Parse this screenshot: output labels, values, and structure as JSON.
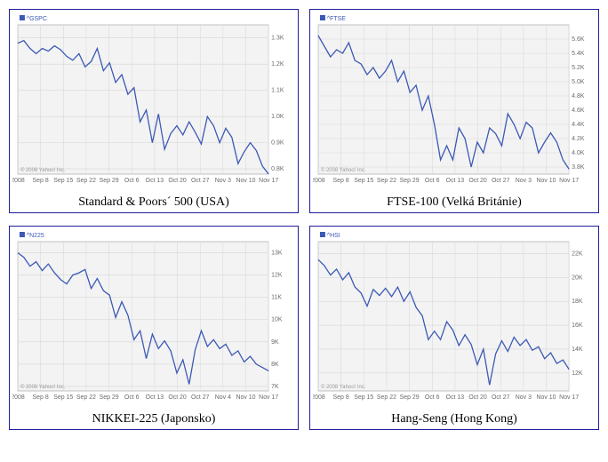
{
  "charts": [
    {
      "caption": "Standard & Poors´ 500  (USA)",
      "series_label": "^GSPC",
      "credit": "© 2008 Yahoo! Inc.",
      "line_color": "#3b59b5",
      "bg_color": "#f3f3f3",
      "grid_color": "#d6d6d6",
      "border_color": "#9a9a9a",
      "ylim": [
        780,
        1350
      ],
      "yticks": [
        {
          "v": 800,
          "l": "0.8K"
        },
        {
          "v": 900,
          "l": "0.9K"
        },
        {
          "v": 1000,
          "l": "1.0K"
        },
        {
          "v": 1100,
          "l": "1.1K"
        },
        {
          "v": 1200,
          "l": "1.2K"
        },
        {
          "v": 1300,
          "l": "1.3K"
        }
      ],
      "xtick_labels": [
        "2008",
        "Sep 8",
        "Sep 15",
        "Sep 22",
        "Sep 29",
        "Oct 6",
        "Oct 13",
        "Oct 20",
        "Oct 27",
        "Nov 3",
        "Nov 10",
        "Nov 17"
      ],
      "values": [
        1280,
        1290,
        1260,
        1240,
        1260,
        1250,
        1270,
        1255,
        1230,
        1215,
        1240,
        1190,
        1210,
        1260,
        1175,
        1205,
        1130,
        1160,
        1085,
        1110,
        980,
        1025,
        900,
        1010,
        875,
        935,
        965,
        930,
        980,
        940,
        895,
        1000,
        965,
        900,
        955,
        920,
        820,
        865,
        900,
        870,
        810,
        780
      ]
    },
    {
      "caption": "FTSE-100  (Velká Británie)",
      "series_label": "^FTSE",
      "credit": "© 2008 Yahoo! Inc.",
      "line_color": "#3b59b5",
      "bg_color": "#f3f3f3",
      "grid_color": "#d6d6d6",
      "border_color": "#9a9a9a",
      "ylim": [
        3700,
        5800
      ],
      "yticks": [
        {
          "v": 3800,
          "l": "3.8K"
        },
        {
          "v": 4000,
          "l": "4.0K"
        },
        {
          "v": 4200,
          "l": "4.2K"
        },
        {
          "v": 4400,
          "l": "4.4K"
        },
        {
          "v": 4600,
          "l": "4.6K"
        },
        {
          "v": 4800,
          "l": "4.8K"
        },
        {
          "v": 5000,
          "l": "5.0K"
        },
        {
          "v": 5200,
          "l": "5.2K"
        },
        {
          "v": 5400,
          "l": "5.4K"
        },
        {
          "v": 5600,
          "l": "5.6K"
        }
      ],
      "xtick_labels": [
        "2008",
        "Sep 8",
        "Sep 15",
        "Sep 22",
        "Sep 29",
        "Oct 6",
        "Oct 13",
        "Oct 20",
        "Oct 27",
        "Nov 3",
        "Nov 10",
        "Nov 17"
      ],
      "values": [
        5650,
        5500,
        5350,
        5450,
        5400,
        5550,
        5300,
        5250,
        5100,
        5200,
        5050,
        5150,
        5300,
        5000,
        5150,
        4850,
        4950,
        4600,
        4800,
        4400,
        3900,
        4100,
        3900,
        4350,
        4200,
        3800,
        4150,
        4000,
        4350,
        4270,
        4100,
        4550,
        4400,
        4200,
        4430,
        4350,
        4000,
        4150,
        4280,
        4150,
        3900,
        3770
      ]
    },
    {
      "caption": "NIKKEI-225  (Japonsko)",
      "series_label": "^N225",
      "credit": "© 2008 Yahoo! Inc.",
      "line_color": "#3b59b5",
      "bg_color": "#f3f3f3",
      "grid_color": "#d6d6d6",
      "border_color": "#9a9a9a",
      "ylim": [
        6800,
        13500
      ],
      "yticks": [
        {
          "v": 7000,
          "l": "7K"
        },
        {
          "v": 8000,
          "l": "8K"
        },
        {
          "v": 9000,
          "l": "9K"
        },
        {
          "v": 10000,
          "l": "10K"
        },
        {
          "v": 11000,
          "l": "11K"
        },
        {
          "v": 12000,
          "l": "12K"
        },
        {
          "v": 13000,
          "l": "13K"
        }
      ],
      "xtick_labels": [
        "2008",
        "Sep 8",
        "Sep 15",
        "Sep 22",
        "Sep 29",
        "Oct 6",
        "Oct 13",
        "Oct 20",
        "Oct 27",
        "Nov 4",
        "Nov 10",
        "Nov 17"
      ],
      "values": [
        13000,
        12800,
        12400,
        12600,
        12200,
        12500,
        12100,
        11800,
        11600,
        12000,
        12100,
        12250,
        11400,
        11850,
        11300,
        11100,
        10100,
        10800,
        10200,
        9100,
        9500,
        8250,
        9350,
        8700,
        9050,
        8600,
        7600,
        8200,
        7100,
        8650,
        9500,
        8800,
        9100,
        8700,
        8900,
        8400,
        8600,
        8100,
        8350,
        8000,
        7850,
        7700
      ]
    },
    {
      "caption": "Hang-Seng (Hong Kong)",
      "series_label": "^HSI",
      "credit": "© 2008 Yahoo! Inc.",
      "line_color": "#3b59b5",
      "bg_color": "#f3f3f3",
      "grid_color": "#d6d6d6",
      "border_color": "#9a9a9a",
      "ylim": [
        10500,
        23000
      ],
      "yticks": [
        {
          "v": 12000,
          "l": "12K"
        },
        {
          "v": 14000,
          "l": "14K"
        },
        {
          "v": 16000,
          "l": "16K"
        },
        {
          "v": 18000,
          "l": "18K"
        },
        {
          "v": 20000,
          "l": "20K"
        },
        {
          "v": 22000,
          "l": "22K"
        }
      ],
      "xtick_labels": [
        "2008",
        "Sep 8",
        "Sep 15",
        "Sep 22",
        "Sep 29",
        "Oct 6",
        "Oct 13",
        "Oct 20",
        "Oct 27",
        "Nov 3",
        "Nov 10",
        "Nov 17"
      ],
      "values": [
        21500,
        21000,
        20200,
        20700,
        19800,
        20400,
        19200,
        18700,
        17600,
        19000,
        18500,
        19100,
        18400,
        19200,
        18000,
        18800,
        17500,
        16800,
        14800,
        15500,
        14800,
        16300,
        15600,
        14300,
        15200,
        14400,
        12700,
        14000,
        11000,
        13600,
        14700,
        13800,
        15000,
        14300,
        14800,
        13900,
        14200,
        13200,
        13700,
        12800,
        13100,
        12300
      ]
    }
  ]
}
